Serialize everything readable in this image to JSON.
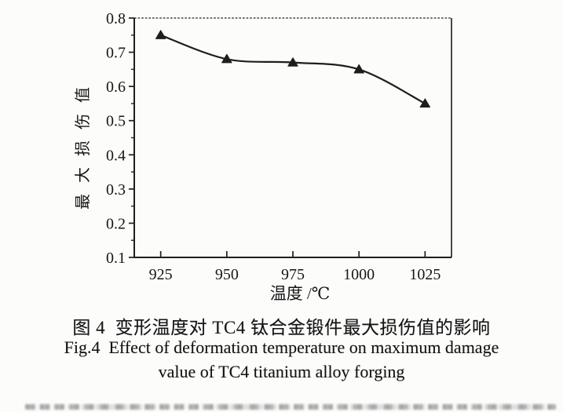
{
  "figure": {
    "caption_cn": "图 4  变形温度对 TC4 钛合金锻件最大损伤值的影响",
    "caption_en_line1": "Fig.4  Effect of deformation temperature on maximum damage",
    "caption_en_line2": "value of TC4 titanium alloy forging"
  },
  "colors": {
    "ink": "#1e1e1e",
    "paper": "#fcfcfb"
  },
  "chart_data": {
    "type": "line",
    "title": "",
    "xlabel": "温度 /℃",
    "ylabel": "最大损伤值",
    "x": [
      925,
      950,
      975,
      1000,
      1025
    ],
    "series": [
      {
        "name": "最大损伤值",
        "values": [
          0.75,
          0.68,
          0.67,
          0.65,
          0.55
        ],
        "marker": "filled-triangle-up",
        "color": "#1e1e1e",
        "curve": "smooth"
      }
    ],
    "xlim": [
      915,
      1035
    ],
    "ylim": [
      0.1,
      0.8
    ],
    "x_major_ticks": [
      925,
      950,
      975,
      1000,
      1025
    ],
    "y_major_ticks": [
      0.1,
      0.2,
      0.3,
      0.4,
      0.5,
      0.6,
      0.7,
      0.8
    ],
    "x_minor_step": 12.5,
    "y_minor_step": 0.05,
    "grid": false,
    "legend": "none",
    "frame": {
      "top_style": "dashed",
      "other_style": "solid"
    }
  }
}
